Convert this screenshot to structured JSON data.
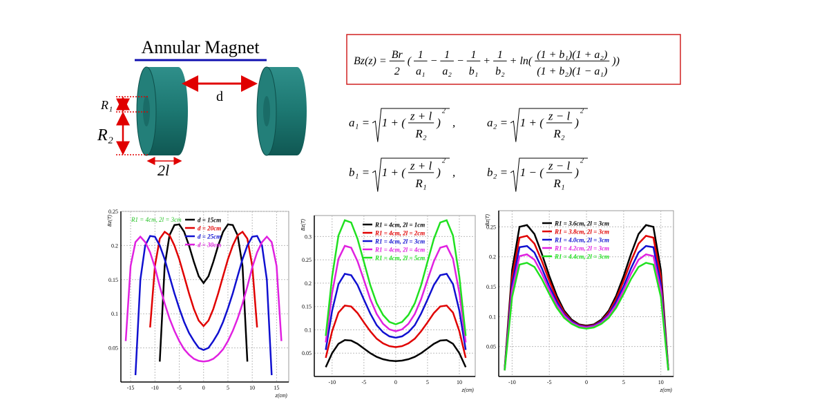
{
  "diagram": {
    "title": "Annular Magnet",
    "distance": "d",
    "inner_radius": "R₁",
    "outer_radius": "R₂",
    "thickness": "2l"
  },
  "formulas": [
    [
      "Bz(z) =",
      {
        "num": "Br",
        "den": "2"
      },
      "(",
      {
        "num": "1",
        "den": "a₁"
      },
      "−",
      {
        "num": "1",
        "den": "a₂"
      },
      "−",
      {
        "num": "1",
        "den": "b₁"
      },
      "+",
      {
        "num": "1",
        "den": "b₂"
      },
      "+ ln(",
      {
        "num": "(1 + b₁)(1 + a₂)",
        "den": "(1 + b₂)(1 − a₁)"
      },
      "))"
    ],
    [
      "a₁ =",
      {
        "sqrt": [
          "1 + (",
          {
            "num": "z + l",
            "den": "R₂"
          },
          ")",
          {
            "sup": "2"
          }
        ]
      },
      ","
    ],
    [
      "a₂ =",
      {
        "sqrt": [
          "1 + (",
          {
            "num": "z − l",
            "den": "R₂"
          },
          ")",
          {
            "sup": "2"
          }
        ]
      }
    ],
    [
      "b₁ =",
      {
        "sqrt": [
          "1 + (",
          {
            "num": "z + l",
            "den": "R₁"
          },
          ")",
          {
            "sup": "2"
          }
        ]
      },
      ","
    ],
    [
      "b₂ =",
      {
        "sqrt": [
          "1 − (",
          {
            "num": "z − l",
            "den": "R₁"
          },
          ")",
          {
            "sup": "2"
          }
        ]
      }
    ]
  ],
  "chart_data": [
    {
      "type": "line",
      "x_label": "z(cm)",
      "y_label": "Bz(T)",
      "annotation": "R1 = 4cm, 2l = 3cm",
      "x": [
        -16,
        -15,
        -14,
        -13,
        -12,
        -11,
        -10,
        -9,
        -8,
        -7,
        -6,
        -5,
        -4,
        -3,
        -2,
        -1,
        0,
        1,
        2,
        3,
        4,
        5,
        6,
        7,
        8,
        9,
        10,
        11,
        12,
        13,
        14,
        15,
        16
      ],
      "xlim": [
        -17,
        17.5
      ],
      "xticks": [
        -15,
        -10,
        -5,
        0,
        5,
        10,
        15
      ],
      "ylim": [
        0,
        0.25
      ],
      "yticks": [
        0.05,
        0.1,
        0.15,
        0.2,
        0.25
      ],
      "grid": true,
      "series": [
        {
          "name": "d = 15cm",
          "color": "#000000",
          "values": [
            null,
            null,
            null,
            null,
            null,
            null,
            null,
            0.03,
            0.17,
            0.215,
            0.23,
            0.231,
            0.22,
            0.2,
            0.176,
            0.155,
            0.145,
            0.155,
            0.176,
            0.2,
            0.22,
            0.231,
            0.23,
            0.215,
            0.17,
            0.03,
            null,
            null,
            null,
            null,
            null,
            null,
            null
          ]
        },
        {
          "name": "d = 20cm",
          "color": "#e00000",
          "values": [
            null,
            null,
            null,
            null,
            null,
            0.08,
            0.17,
            0.21,
            0.22,
            0.215,
            0.2,
            0.18,
            0.155,
            0.13,
            0.107,
            0.09,
            0.082,
            0.09,
            0.107,
            0.13,
            0.155,
            0.18,
            0.2,
            0.215,
            0.22,
            0.21,
            0.17,
            0.08,
            null,
            null,
            null,
            null,
            null
          ]
        },
        {
          "name": "d = 25cm",
          "color": "#1010d0",
          "values": [
            null,
            null,
            0.01,
            0.15,
            0.2,
            0.214,
            0.213,
            0.2,
            0.18,
            0.155,
            0.13,
            0.108,
            0.088,
            0.072,
            0.06,
            0.05,
            0.047,
            0.05,
            0.06,
            0.072,
            0.088,
            0.108,
            0.13,
            0.155,
            0.18,
            0.2,
            0.213,
            0.214,
            0.2,
            0.15,
            0.01,
            null,
            null
          ]
        },
        {
          "name": "d = 30cm",
          "color": "#e020e0",
          "values": [
            0.06,
            0.17,
            0.205,
            0.213,
            0.205,
            0.19,
            0.168,
            0.14,
            0.115,
            0.093,
            0.075,
            0.06,
            0.048,
            0.04,
            0.034,
            0.031,
            0.03,
            0.031,
            0.034,
            0.04,
            0.048,
            0.06,
            0.075,
            0.093,
            0.115,
            0.14,
            0.168,
            0.19,
            0.205,
            0.213,
            0.205,
            0.17,
            0.06
          ]
        }
      ]
    },
    {
      "type": "line",
      "x_label": "z(cm)",
      "y_label": "Bz(T)",
      "x": [
        -11,
        -10,
        -9,
        -8,
        -7,
        -6,
        -5,
        -4,
        -3,
        -2,
        -1,
        0,
        1,
        2,
        3,
        4,
        5,
        6,
        7,
        8,
        9,
        10,
        11
      ],
      "xlim": [
        -12.8,
        12.5
      ],
      "xticks": [
        -10,
        -5,
        0,
        5,
        10
      ],
      "ylim": [
        0,
        0.345
      ],
      "yticks": [
        0.05,
        0.1,
        0.15,
        0.2,
        0.25,
        0.3
      ],
      "grid": true,
      "series": [
        {
          "name": "R1 = 4cm, 2l = 1cm",
          "color": "#000000",
          "values": [
            0.02,
            0.05,
            0.07,
            0.078,
            0.077,
            0.07,
            0.06,
            0.05,
            0.042,
            0.037,
            0.034,
            0.033,
            0.034,
            0.037,
            0.042,
            0.05,
            0.06,
            0.07,
            0.077,
            0.078,
            0.07,
            0.05,
            0.02
          ]
        },
        {
          "name": "R1 = 4cm, 2l = 2cm",
          "color": "#e00000",
          "values": [
            0.04,
            0.097,
            0.137,
            0.152,
            0.15,
            0.136,
            0.116,
            0.097,
            0.081,
            0.071,
            0.065,
            0.063,
            0.065,
            0.071,
            0.081,
            0.097,
            0.116,
            0.136,
            0.15,
            0.152,
            0.137,
            0.097,
            0.04
          ]
        },
        {
          "name": "R1 = 4cm, 2l = 3cm",
          "color": "#1010d0",
          "values": [
            0.057,
            0.141,
            0.198,
            0.22,
            0.217,
            0.196,
            0.165,
            0.135,
            0.11,
            0.095,
            0.086,
            0.083,
            0.086,
            0.095,
            0.11,
            0.135,
            0.165,
            0.196,
            0.217,
            0.22,
            0.198,
            0.141,
            0.057
          ]
        },
        {
          "name": "R1 = 4cm, 2l = 4cm",
          "color": "#e020e0",
          "values": [
            0.073,
            0.179,
            0.252,
            0.28,
            0.276,
            0.247,
            0.207,
            0.166,
            0.134,
            0.113,
            0.101,
            0.097,
            0.101,
            0.113,
            0.134,
            0.166,
            0.207,
            0.247,
            0.276,
            0.28,
            0.252,
            0.179,
            0.073
          ]
        },
        {
          "name": "R1 = 4cm, 2l = 5cm",
          "color": "#20e020",
          "values": [
            0.087,
            0.214,
            0.302,
            0.335,
            0.33,
            0.295,
            0.246,
            0.196,
            0.157,
            0.132,
            0.117,
            0.112,
            0.117,
            0.132,
            0.157,
            0.196,
            0.246,
            0.295,
            0.33,
            0.335,
            0.302,
            0.214,
            0.087
          ]
        }
      ]
    },
    {
      "type": "line",
      "x_label": "z(cm)",
      "y_label": "Bz(T)",
      "x": [
        -11,
        -10,
        -9,
        -8,
        -7,
        -6,
        -5,
        -4,
        -3,
        -2,
        -1,
        0,
        1,
        2,
        3,
        4,
        5,
        6,
        7,
        8,
        9,
        10,
        11
      ],
      "xlim": [
        -11.8,
        11.7
      ],
      "xticks": [
        -10,
        -5,
        0,
        5,
        10
      ],
      "ylim": [
        0,
        0.277
      ],
      "yticks": [
        0.05,
        0.1,
        0.15,
        0.2,
        0.25
      ],
      "grid": true,
      "series": [
        {
          "name": "R1 = 3.6cm, 2l = 3cm",
          "color": "#000000",
          "values": [
            0.013,
            0.178,
            0.25,
            0.253,
            0.238,
            0.205,
            0.168,
            0.135,
            0.11,
            0.095,
            0.087,
            0.085,
            0.087,
            0.095,
            0.11,
            0.135,
            0.168,
            0.205,
            0.238,
            0.253,
            0.25,
            0.178,
            0.013
          ]
        },
        {
          "name": "R1 = 3.8cm, 2l = 3cm",
          "color": "#e00000",
          "values": [
            0.012,
            0.166,
            0.232,
            0.235,
            0.222,
            0.193,
            0.16,
            0.13,
            0.107,
            0.093,
            0.086,
            0.084,
            0.086,
            0.093,
            0.107,
            0.13,
            0.16,
            0.193,
            0.222,
            0.235,
            0.232,
            0.166,
            0.012
          ]
        },
        {
          "name": "R1 = 4.0cm, 2l = 3cm",
          "color": "#1010d0",
          "values": [
            0.011,
            0.154,
            0.216,
            0.218,
            0.207,
            0.181,
            0.151,
            0.125,
            0.104,
            0.092,
            0.085,
            0.083,
            0.085,
            0.092,
            0.104,
            0.125,
            0.151,
            0.181,
            0.207,
            0.218,
            0.216,
            0.154,
            0.011
          ]
        },
        {
          "name": "R1 = 4.2cm, 2l = 3cm",
          "color": "#e020e0",
          "values": [
            0.01,
            0.144,
            0.201,
            0.204,
            0.195,
            0.172,
            0.145,
            0.12,
            0.102,
            0.09,
            0.084,
            0.082,
            0.084,
            0.09,
            0.102,
            0.12,
            0.145,
            0.172,
            0.195,
            0.204,
            0.201,
            0.144,
            0.01
          ]
        },
        {
          "name": "R1 = 4.4cm, 2l = 3cm",
          "color": "#20e020",
          "values": [
            0.01,
            0.133,
            0.187,
            0.19,
            0.183,
            0.163,
            0.138,
            0.115,
            0.098,
            0.088,
            0.082,
            0.08,
            0.082,
            0.088,
            0.098,
            0.115,
            0.138,
            0.163,
            0.183,
            0.19,
            0.187,
            0.133,
            0.01
          ]
        }
      ]
    }
  ]
}
